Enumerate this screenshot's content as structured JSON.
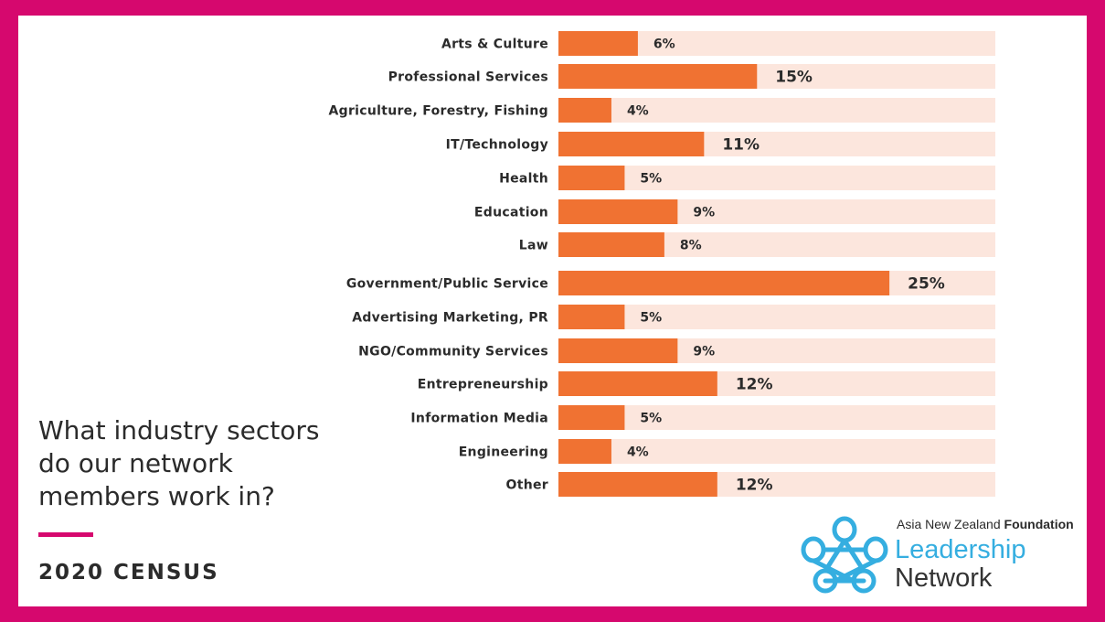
{
  "page": {
    "question": "What industry sectors do our network members work in?",
    "census_label": "2020 CENSUS"
  },
  "logo": {
    "org_prefix": "Asia New Zealand ",
    "org_bold": "Foundation",
    "line1": "Leadership",
    "line2": "Network",
    "icon": "knot-star-icon"
  },
  "colors": {
    "bar": "#f07232",
    "track": "#fce6dd",
    "border": "#d6086e",
    "logo_blue": "#35aee0"
  },
  "chart_data": {
    "type": "bar",
    "orientation": "horizontal",
    "categories": [
      "Arts & Culture",
      "Professional Services",
      "Agriculture, Forestry, Fishing",
      "IT/Technology",
      "Health",
      "Education",
      "Law",
      "Government/Public Service",
      "Advertising Marketing, PR",
      "NGO/Community Services",
      "Entrepreneurship",
      "Information Media",
      "Engineering",
      "Other"
    ],
    "values": [
      6,
      15,
      4,
      11,
      5,
      9,
      8,
      25,
      5,
      9,
      12,
      5,
      4,
      12
    ],
    "value_labels": [
      "6%",
      "15%",
      "4%",
      "11%",
      "5%",
      "9%",
      "8%",
      "25%",
      "5%",
      "9%",
      "12%",
      "5%",
      "4%",
      "12%"
    ],
    "xlim": [
      0,
      33
    ],
    "grid": false
  }
}
